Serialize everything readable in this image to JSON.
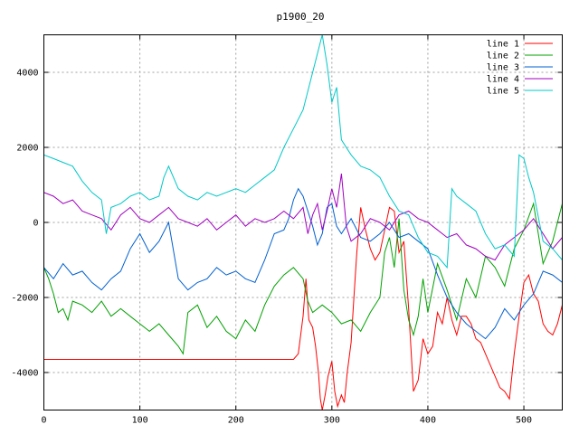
{
  "chart_data": {
    "type": "line",
    "title": "p1900_20",
    "xlabel": "",
    "ylabel": "",
    "xlim": [
      0,
      540
    ],
    "ylim": [
      -5000,
      5000
    ],
    "xticks": [
      0,
      100,
      200,
      300,
      400,
      500
    ],
    "yticks": [
      -4000,
      -2000,
      0,
      2000,
      4000
    ],
    "grid": true,
    "legend": "top-right",
    "series": [
      {
        "name": "line 1",
        "color": "#ff0000",
        "x": [
          0,
          100,
          200,
          260,
          265,
          270,
          273,
          276,
          280,
          283,
          286,
          288,
          290,
          293,
          296,
          300,
          303,
          306,
          310,
          313,
          316,
          320,
          323,
          326,
          330,
          335,
          340,
          345,
          350,
          355,
          360,
          365,
          370,
          375,
          380,
          385,
          390,
          395,
          400,
          405,
          410,
          415,
          420,
          425,
          430,
          435,
          440,
          445,
          450,
          455,
          460,
          465,
          470,
          475,
          480,
          485,
          490,
          495,
          500,
          505,
          510,
          515,
          520,
          525,
          530,
          535,
          540
        ],
        "y": [
          -3650,
          -3650,
          -3650,
          -3650,
          -3500,
          -2500,
          -1500,
          -2600,
          -2800,
          -3300,
          -4000,
          -4700,
          -5000,
          -4600,
          -4100,
          -3700,
          -4500,
          -4900,
          -4600,
          -4800,
          -4000,
          -3200,
          -2000,
          -800,
          400,
          -200,
          -700,
          -1000,
          -800,
          -200,
          400,
          300,
          -800,
          -500,
          -2300,
          -4500,
          -4200,
          -3100,
          -3500,
          -3300,
          -2400,
          -2700,
          -2000,
          -2600,
          -3000,
          -2500,
          -2500,
          -2700,
          -3100,
          -3200,
          -3500,
          -3800,
          -4100,
          -4400,
          -4500,
          -4700,
          -3500,
          -2500,
          -1600,
          -1400,
          -1900,
          -2100,
          -2700,
          -2900,
          -3000,
          -2700,
          -2200
        ]
      },
      {
        "name": "line 2",
        "color": "#00a000",
        "x": [
          0,
          5,
          10,
          15,
          20,
          25,
          30,
          40,
          50,
          60,
          70,
          80,
          90,
          100,
          110,
          120,
          130,
          140,
          145,
          150,
          160,
          170,
          180,
          190,
          200,
          210,
          220,
          230,
          240,
          250,
          260,
          270,
          275,
          280,
          290,
          300,
          310,
          320,
          330,
          340,
          350,
          355,
          360,
          365,
          370,
          375,
          380,
          385,
          390,
          395,
          400,
          410,
          420,
          430,
          440,
          450,
          460,
          470,
          480,
          490,
          500,
          510,
          520,
          530,
          540
        ],
        "y": [
          -1200,
          -1500,
          -1900,
          -2400,
          -2300,
          -2600,
          -2100,
          -2200,
          -2400,
          -2100,
          -2500,
          -2300,
          -2500,
          -2700,
          -2900,
          -2700,
          -3000,
          -3300,
          -3500,
          -2400,
          -2200,
          -2800,
          -2500,
          -2900,
          -3100,
          -2600,
          -2900,
          -2200,
          -1700,
          -1400,
          -1200,
          -1500,
          -2100,
          -2400,
          -2200,
          -2400,
          -2700,
          -2600,
          -2900,
          -2400,
          -2000,
          -800,
          -400,
          -1200,
          100,
          -1800,
          -2600,
          -3000,
          -2500,
          -1500,
          -2400,
          -1100,
          -1800,
          -2600,
          -1500,
          -2000,
          -900,
          -1200,
          -1700,
          -700,
          -200,
          500,
          -1100,
          -500,
          500
        ]
      },
      {
        "name": "line 3",
        "color": "#0060d0",
        "x": [
          0,
          10,
          20,
          30,
          40,
          50,
          60,
          70,
          80,
          90,
          100,
          110,
          120,
          130,
          140,
          150,
          160,
          170,
          180,
          190,
          200,
          210,
          220,
          230,
          240,
          250,
          255,
          260,
          265,
          270,
          275,
          280,
          285,
          290,
          295,
          300,
          305,
          310,
          320,
          330,
          340,
          350,
          360,
          370,
          380,
          390,
          400,
          410,
          420,
          430,
          440,
          450,
          460,
          470,
          480,
          490,
          500,
          510,
          520,
          530,
          540
        ],
        "y": [
          -1200,
          -1500,
          -1100,
          -1400,
          -1300,
          -1600,
          -1800,
          -1500,
          -1300,
          -700,
          -300,
          -800,
          -500,
          0,
          -1500,
          -1800,
          -1600,
          -1500,
          -1200,
          -1400,
          -1300,
          -1500,
          -1600,
          -1000,
          -300,
          -200,
          100,
          600,
          900,
          700,
          300,
          -100,
          -600,
          -300,
          400,
          500,
          -100,
          -300,
          100,
          -400,
          -500,
          -300,
          0,
          -400,
          -300,
          -500,
          -700,
          -1400,
          -2000,
          -2400,
          -2700,
          -2900,
          -3100,
          -2800,
          -2300,
          -2600,
          -2200,
          -1900,
          -1300,
          -1400,
          -1600
        ]
      },
      {
        "name": "line 4",
        "color": "#a000c0",
        "x": [
          0,
          10,
          20,
          30,
          40,
          50,
          60,
          70,
          80,
          90,
          100,
          110,
          120,
          130,
          140,
          150,
          160,
          170,
          180,
          190,
          200,
          210,
          220,
          230,
          240,
          250,
          260,
          270,
          275,
          280,
          285,
          290,
          295,
          300,
          305,
          310,
          315,
          320,
          330,
          340,
          350,
          360,
          370,
          380,
          390,
          400,
          410,
          420,
          430,
          440,
          450,
          460,
          470,
          480,
          490,
          500,
          510,
          520,
          530,
          540
        ],
        "y": [
          800,
          700,
          500,
          600,
          300,
          200,
          100,
          -200,
          200,
          400,
          100,
          0,
          200,
          400,
          100,
          0,
          -100,
          100,
          -200,
          0,
          200,
          -100,
          100,
          0,
          100,
          300,
          100,
          400,
          -300,
          200,
          500,
          -200,
          300,
          900,
          400,
          1300,
          -100,
          -500,
          -300,
          100,
          0,
          -200,
          200,
          300,
          100,
          0,
          -200,
          -400,
          -300,
          -600,
          -700,
          -900,
          -1000,
          -600,
          -400,
          -200,
          100,
          -300,
          -700,
          -400
        ]
      },
      {
        "name": "line 5",
        "color": "#00c8c8",
        "x": [
          0,
          10,
          20,
          30,
          40,
          50,
          60,
          65,
          70,
          80,
          90,
          100,
          110,
          120,
          125,
          130,
          140,
          150,
          160,
          170,
          180,
          190,
          200,
          210,
          220,
          230,
          240,
          250,
          260,
          270,
          280,
          285,
          290,
          295,
          300,
          305,
          310,
          320,
          330,
          340,
          350,
          360,
          365,
          370,
          380,
          390,
          400,
          410,
          420,
          425,
          430,
          440,
          450,
          460,
          470,
          480,
          490,
          495,
          500,
          505,
          510,
          520,
          530,
          540
        ],
        "y": [
          1800,
          1700,
          1600,
          1500,
          1100,
          800,
          600,
          -300,
          400,
          500,
          700,
          800,
          600,
          700,
          1200,
          1500,
          900,
          700,
          600,
          800,
          700,
          800,
          900,
          800,
          1000,
          1200,
          1400,
          2000,
          2500,
          3000,
          4000,
          4500,
          5000,
          4200,
          3200,
          3600,
          2200,
          1800,
          1500,
          1400,
          1200,
          700,
          500,
          300,
          200,
          -400,
          -800,
          -900,
          -1200,
          900,
          700,
          500,
          300,
          -300,
          -700,
          -600,
          -900,
          1800,
          1700,
          1200,
          800,
          -500,
          -700,
          -1000
        ]
      }
    ]
  }
}
